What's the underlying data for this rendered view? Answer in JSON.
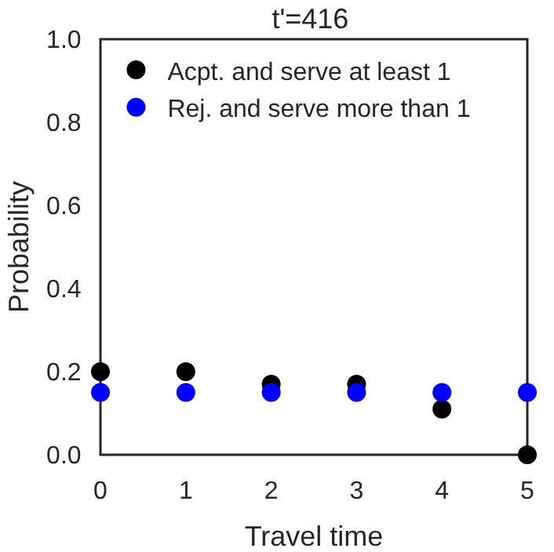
{
  "chart_data": {
    "type": "scatter",
    "title": "t'=416",
    "xlabel": "Travel time",
    "ylabel": "Probability",
    "x": [
      0,
      1,
      2,
      3,
      4,
      5
    ],
    "series": [
      {
        "name": "Acpt. and serve at least 1",
        "color": "#000000",
        "values": [
          0.2,
          0.2,
          0.17,
          0.17,
          0.11,
          0
        ]
      },
      {
        "name": "Rej. and serve more than 1",
        "color": "#0000ff",
        "values": [
          0.15,
          0.15,
          0.15,
          0.15,
          0.15,
          0.15
        ]
      }
    ],
    "xlim": [
      0,
      5
    ],
    "xticks": [
      0,
      1,
      2,
      3,
      4,
      5
    ],
    "ylim": [
      0,
      1
    ],
    "yticks": [
      {
        "value": 0,
        "label": "0.0"
      },
      0.2,
      0.4,
      0.6,
      0.8,
      {
        "value": 1,
        "label": "1.0"
      }
    ],
    "grid": false,
    "legend": "top left",
    "marker": "circle"
  }
}
